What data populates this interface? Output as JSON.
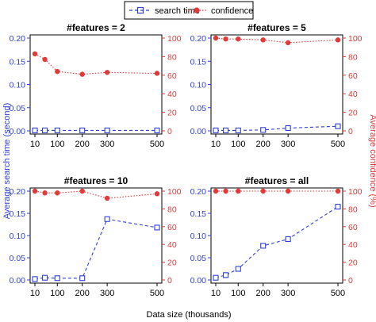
{
  "colors": {
    "search": "#2f3fd6",
    "confidence": "#e23a3a",
    "axis": "#000000"
  },
  "legend": {
    "items": [
      {
        "label": "search time",
        "marker": "open-square",
        "line": "dashed",
        "color": "#2f3fd6"
      },
      {
        "label": "confidence",
        "marker": "filled-circle",
        "line": "dotted",
        "color": "#e23a3a"
      }
    ],
    "position": "top-center"
  },
  "axis_titles": {
    "x": "Data size (thousands)",
    "left": "Average search time (second)",
    "right": "Average confidence (%)"
  },
  "chart_data": [
    {
      "type": "line",
      "title": "#features = 2",
      "x": [
        10,
        50,
        100,
        200,
        300,
        500
      ],
      "x_ticks": [
        10,
        100,
        200,
        300,
        500
      ],
      "xlim": [
        10,
        500
      ],
      "ylim_left": [
        0,
        0.2
      ],
      "ylim_right": [
        0,
        100
      ],
      "yticks_left": [
        "0.00",
        "0.05",
        "0.10",
        "0.15",
        "0.20"
      ],
      "yticks_right": [
        "0",
        "20",
        "40",
        "60",
        "80",
        "100"
      ],
      "series": [
        {
          "axis": "left",
          "values": [
            0.001,
            0.001,
            0.001,
            0.001,
            0.001,
            0.001
          ]
        },
        {
          "axis": "right",
          "values": [
            83,
            77,
            64,
            61,
            63,
            62
          ]
        }
      ]
    },
    {
      "type": "line",
      "title": "#features = 5",
      "x": [
        10,
        50,
        100,
        200,
        300,
        500
      ],
      "x_ticks": [
        10,
        100,
        200,
        300,
        500
      ],
      "xlim": [
        10,
        500
      ],
      "ylim_left": [
        0,
        0.2
      ],
      "ylim_right": [
        0,
        100
      ],
      "yticks_left": [
        "0.00",
        "0.05",
        "0.10",
        "0.15",
        "0.20"
      ],
      "yticks_right": [
        "0",
        "20",
        "40",
        "60",
        "80",
        "100"
      ],
      "series": [
        {
          "axis": "left",
          "values": [
            0.001,
            0.001,
            0.001,
            0.002,
            0.006,
            0.01
          ]
        },
        {
          "axis": "right",
          "values": [
            100,
            99,
            99,
            98,
            95,
            98
          ]
        }
      ]
    },
    {
      "type": "line",
      "title": "#features = 10",
      "x": [
        10,
        50,
        100,
        200,
        300,
        500
      ],
      "x_ticks": [
        10,
        100,
        200,
        300,
        500
      ],
      "xlim": [
        10,
        500
      ],
      "ylim_left": [
        0,
        0.2
      ],
      "ylim_right": [
        0,
        100
      ],
      "yticks_left": [
        "0.00",
        "0.05",
        "0.10",
        "0.15",
        "0.20"
      ],
      "yticks_right": [
        "0",
        "20",
        "40",
        "60",
        "80",
        "100"
      ],
      "series": [
        {
          "axis": "left",
          "values": [
            0.002,
            0.005,
            0.004,
            0.004,
            0.137,
            0.118
          ]
        },
        {
          "axis": "right",
          "values": [
            100,
            98,
            98,
            100,
            92,
            97
          ]
        }
      ]
    },
    {
      "type": "line",
      "title": "#features = all",
      "x": [
        10,
        50,
        100,
        200,
        300,
        500
      ],
      "x_ticks": [
        10,
        100,
        200,
        300,
        500
      ],
      "xlim": [
        10,
        500
      ],
      "ylim_left": [
        0,
        0.2
      ],
      "ylim_right": [
        0,
        100
      ],
      "yticks_left": [
        "0.00",
        "0.05",
        "0.10",
        "0.15",
        "0.20"
      ],
      "yticks_right": [
        "0",
        "20",
        "40",
        "60",
        "80",
        "100"
      ],
      "series": [
        {
          "axis": "left",
          "values": [
            0.005,
            0.011,
            0.025,
            0.077,
            0.092,
            0.165
          ]
        },
        {
          "axis": "right",
          "values": [
            100,
            100,
            100,
            100,
            100,
            100
          ]
        }
      ]
    }
  ]
}
